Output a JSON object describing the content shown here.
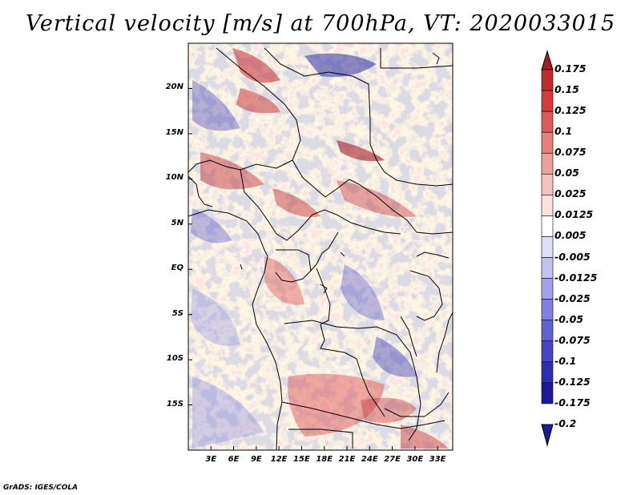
{
  "title": "Vertical velocity [m/s] at 700hPa, VT: 2020033015",
  "footer": "GrADS: IGES/COLA",
  "map": {
    "lon_range": [
      0,
      35
    ],
    "lat_range": [
      -20,
      25
    ],
    "x_ticks": [
      {
        "value": 3,
        "label": "3E"
      },
      {
        "value": 6,
        "label": "6E"
      },
      {
        "value": 9,
        "label": "9E"
      },
      {
        "value": 12,
        "label": "12E"
      },
      {
        "value": 15,
        "label": "15E"
      },
      {
        "value": 18,
        "label": "18E"
      },
      {
        "value": 21,
        "label": "21E"
      },
      {
        "value": 24,
        "label": "24E"
      },
      {
        "value": 27,
        "label": "27E"
      },
      {
        "value": 30,
        "label": "30E"
      },
      {
        "value": 33,
        "label": "33E"
      }
    ],
    "y_ticks": [
      {
        "value": 20,
        "label": "20N"
      },
      {
        "value": 15,
        "label": "15N"
      },
      {
        "value": 10,
        "label": "10N"
      },
      {
        "value": 5,
        "label": "5N"
      },
      {
        "value": 0,
        "label": "EQ"
      },
      {
        "value": -5,
        "label": "5S"
      },
      {
        "value": -10,
        "label": "10S"
      },
      {
        "value": -15,
        "label": "15S"
      }
    ]
  },
  "colorbar": {
    "labels": [
      "0.175",
      "0.15",
      "0.125",
      "0.1",
      "0.075",
      "0.05",
      "0.025",
      "0.0125",
      "0.005",
      "-0.005",
      "-0.0125",
      "-0.025",
      "-0.05",
      "-0.075",
      "-0.1",
      "-0.125",
      "-0.175",
      "-0.2"
    ],
    "colors": [
      "#a51c24",
      "#c22a2e",
      "#d63a3a",
      "#e05a55",
      "#e5807a",
      "#eca19b",
      "#f4c3bf",
      "#fbe0de",
      "#ffffff",
      "#dedef8",
      "#c3c3f2",
      "#a3a3ea",
      "#8080e0",
      "#6262d6",
      "#4545c8",
      "#2e2eb2",
      "#1b1b9a"
    ]
  }
}
